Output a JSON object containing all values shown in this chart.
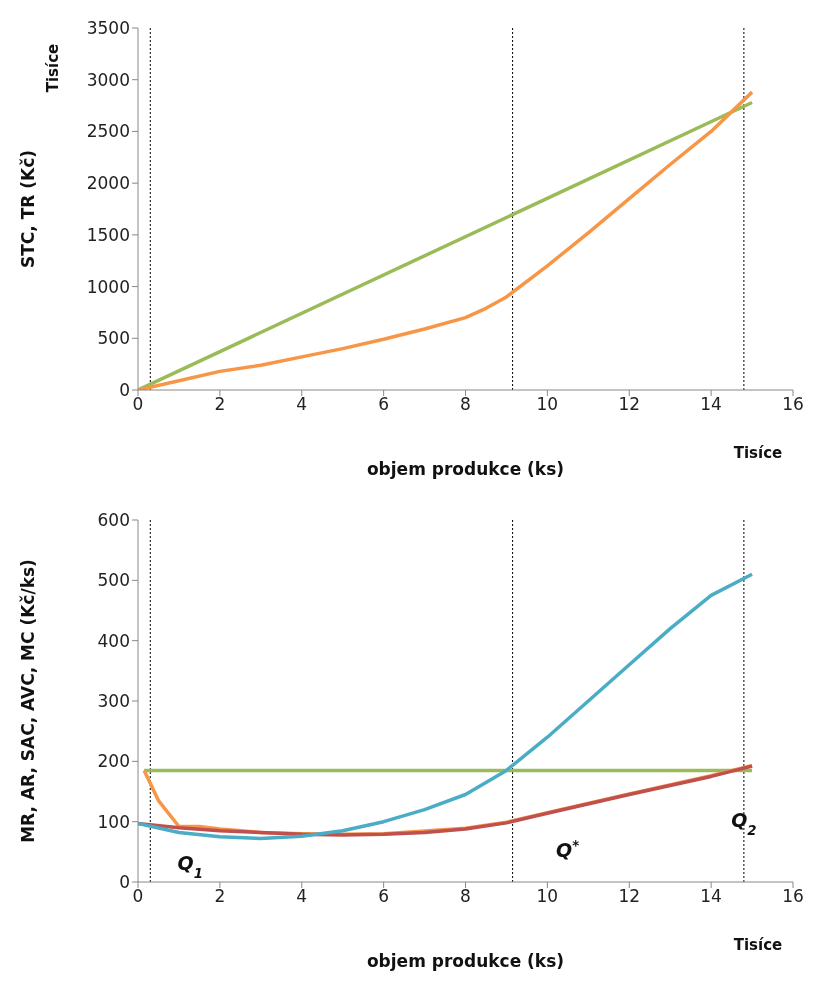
{
  "chart_data": [
    {
      "type": "line",
      "xlabel": "objem produkce  (ks)",
      "ylabel": "STC, TR  (Kč)",
      "xlim": [
        0,
        16
      ],
      "xticks": [
        0,
        2,
        4,
        6,
        8,
        10,
        12,
        14,
        16
      ],
      "ylim": [
        0,
        3500
      ],
      "yticks": [
        0,
        500,
        1000,
        1500,
        2000,
        2500,
        3000,
        3500
      ],
      "marker": "none",
      "series": [
        {
          "color": "#9bbb59",
          "x": [
            0,
            15
          ],
          "values": [
            0,
            2780
          ]
        },
        {
          "color": "#f79646",
          "x": [
            0,
            1,
            2,
            3,
            4,
            5,
            6,
            7,
            8,
            8.5,
            9,
            10,
            11,
            12,
            13,
            14,
            15
          ],
          "values": [
            0,
            90,
            180,
            240,
            320,
            400,
            490,
            590,
            700,
            790,
            900,
            1200,
            1520,
            1850,
            2180,
            2500,
            2880
          ]
        }
      ],
      "ref_lines": [
        {
          "axis": "x",
          "value": 0.3,
          "color": "#000000",
          "line_style": "dotted"
        },
        {
          "axis": "x",
          "value": 9.15,
          "color": "#000000",
          "line_style": "dotted"
        },
        {
          "axis": "x",
          "value": 14.8,
          "color": "#000000",
          "line_style": "dotted"
        }
      ],
      "annotations": [
        "Tisíce",
        "Tisíce"
      ]
    },
    {
      "type": "line",
      "xlabel": "objem produkce  (ks)",
      "ylabel": "MR, AR, SAC, AVC, MC  (Kč/ks)",
      "xlim": [
        0,
        16
      ],
      "xticks": [
        0,
        2,
        4,
        6,
        8,
        10,
        12,
        14,
        16
      ],
      "ylim": [
        0,
        600
      ],
      "yticks": [
        0,
        100,
        200,
        300,
        400,
        500,
        600
      ],
      "marker": "none",
      "series": [
        {
          "color": "#9bbb59",
          "x": [
            0.15,
            15
          ],
          "values": [
            185,
            185
          ]
        },
        {
          "color": "#f79646",
          "x": [
            0.15,
            0.5,
            1,
            1.5,
            2,
            3,
            4,
            5,
            6,
            8,
            9,
            10,
            12,
            14,
            15
          ],
          "values": [
            185,
            135,
            92,
            92,
            88,
            82,
            80,
            79,
            80,
            89,
            99,
            115,
            146,
            176,
            193
          ]
        },
        {
          "color": "#c0504d",
          "x": [
            0,
            1,
            2,
            3,
            4,
            5,
            6,
            7,
            8,
            9,
            10,
            12,
            14,
            15
          ],
          "values": [
            97,
            90,
            85,
            82,
            79,
            78,
            79,
            82,
            88,
            98,
            114,
            145,
            175,
            192
          ]
        },
        {
          "color": "#4bacc6",
          "x": [
            0,
            1,
            2,
            3,
            4,
            5,
            6,
            7,
            8,
            9,
            10,
            11,
            12,
            13,
            14,
            15
          ],
          "values": [
            97,
            82,
            75,
            72,
            76,
            85,
            100,
            120,
            145,
            185,
            240,
            300,
            360,
            420,
            475,
            510
          ]
        }
      ],
      "ref_lines": [
        {
          "axis": "x",
          "value": 0.3,
          "color": "#000000",
          "line_style": "dotted"
        },
        {
          "axis": "x",
          "value": 9.15,
          "color": "#000000",
          "line_style": "dotted"
        },
        {
          "axis": "x",
          "value": 14.8,
          "color": "#000000",
          "line_style": "dotted"
        }
      ],
      "annotations": [
        "Tisíce",
        "Q$_{1}$",
        "Q$^{*}$",
        "Q$_{2}$"
      ]
    }
  ]
}
